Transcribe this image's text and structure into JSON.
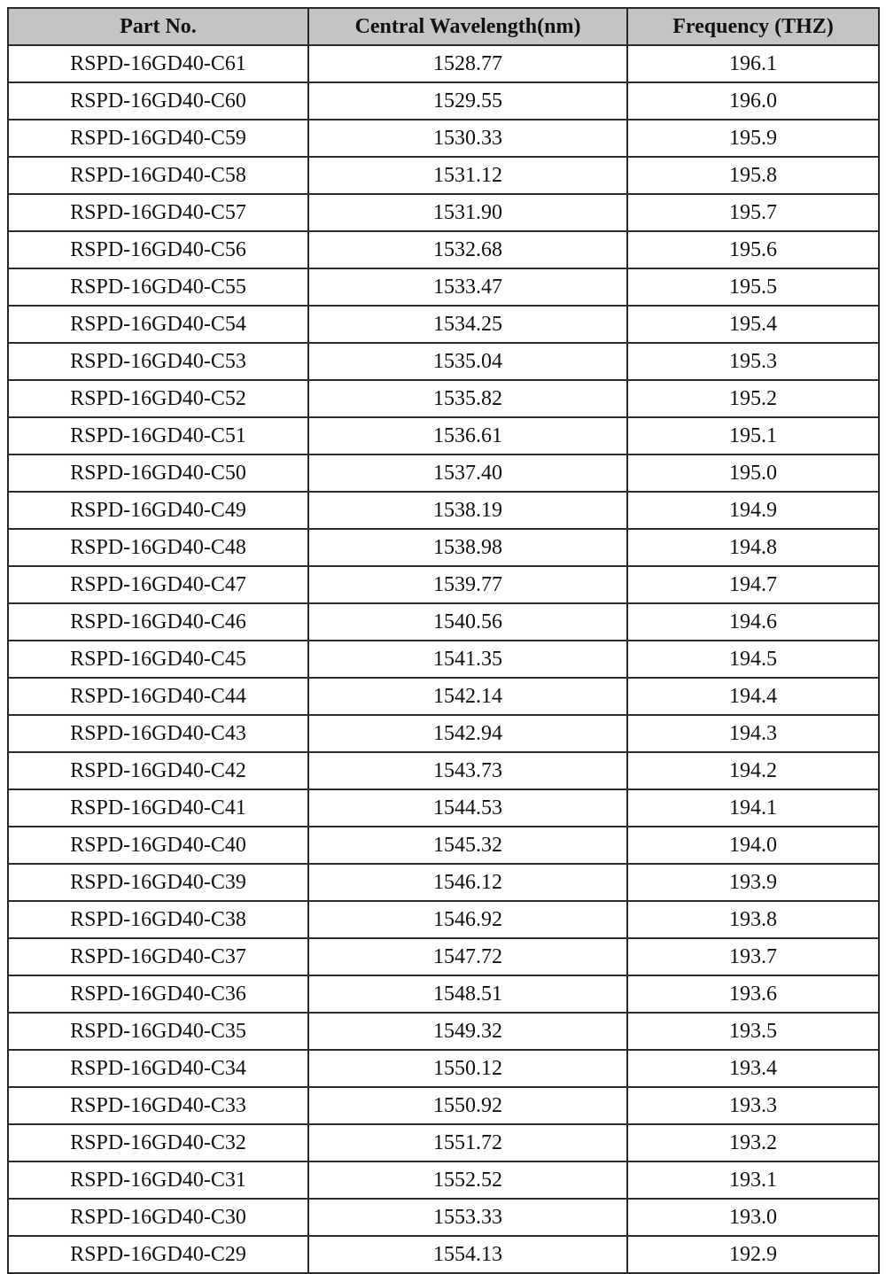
{
  "table": {
    "headers": [
      "Part No.",
      "Central Wavelength(nm)",
      "Frequency (THZ)"
    ],
    "header_bg": "#c4c4c4",
    "rows": [
      [
        "RSPD-16GD40-C61",
        "1528.77",
        "196.1"
      ],
      [
        "RSPD-16GD40-C60",
        "1529.55",
        "196.0"
      ],
      [
        "RSPD-16GD40-C59",
        "1530.33",
        "195.9"
      ],
      [
        "RSPD-16GD40-C58",
        "1531.12",
        "195.8"
      ],
      [
        "RSPD-16GD40-C57",
        "1531.90",
        "195.7"
      ],
      [
        "RSPD-16GD40-C56",
        "1532.68",
        "195.6"
      ],
      [
        "RSPD-16GD40-C55",
        "1533.47",
        "195.5"
      ],
      [
        "RSPD-16GD40-C54",
        "1534.25",
        "195.4"
      ],
      [
        "RSPD-16GD40-C53",
        "1535.04",
        "195.3"
      ],
      [
        "RSPD-16GD40-C52",
        "1535.82",
        "195.2"
      ],
      [
        "RSPD-16GD40-C51",
        "1536.61",
        "195.1"
      ],
      [
        "RSPD-16GD40-C50",
        "1537.40",
        "195.0"
      ],
      [
        "RSPD-16GD40-C49",
        "1538.19",
        "194.9"
      ],
      [
        "RSPD-16GD40-C48",
        "1538.98",
        "194.8"
      ],
      [
        "RSPD-16GD40-C47",
        "1539.77",
        "194.7"
      ],
      [
        "RSPD-16GD40-C46",
        "1540.56",
        "194.6"
      ],
      [
        "RSPD-16GD40-C45",
        "1541.35",
        "194.5"
      ],
      [
        "RSPD-16GD40-C44",
        "1542.14",
        "194.4"
      ],
      [
        "RSPD-16GD40-C43",
        "1542.94",
        "194.3"
      ],
      [
        "RSPD-16GD40-C42",
        "1543.73",
        "194.2"
      ],
      [
        "RSPD-16GD40-C41",
        "1544.53",
        "194.1"
      ],
      [
        "RSPD-16GD40-C40",
        "1545.32",
        "194.0"
      ],
      [
        "RSPD-16GD40-C39",
        "1546.12",
        "193.9"
      ],
      [
        "RSPD-16GD40-C38",
        "1546.92",
        "193.8"
      ],
      [
        "RSPD-16GD40-C37",
        "1547.72",
        "193.7"
      ],
      [
        "RSPD-16GD40-C36",
        "1548.51",
        "193.6"
      ],
      [
        "RSPD-16GD40-C35",
        "1549.32",
        "193.5"
      ],
      [
        "RSPD-16GD40-C34",
        "1550.12",
        "193.4"
      ],
      [
        "RSPD-16GD40-C33",
        "1550.92",
        "193.3"
      ],
      [
        "RSPD-16GD40-C32",
        "1551.72",
        "193.2"
      ],
      [
        "RSPD-16GD40-C31",
        "1552.52",
        "193.1"
      ],
      [
        "RSPD-16GD40-C30",
        "1553.33",
        "193.0"
      ],
      [
        "RSPD-16GD40-C29",
        "1554.13",
        "192.9"
      ]
    ]
  }
}
